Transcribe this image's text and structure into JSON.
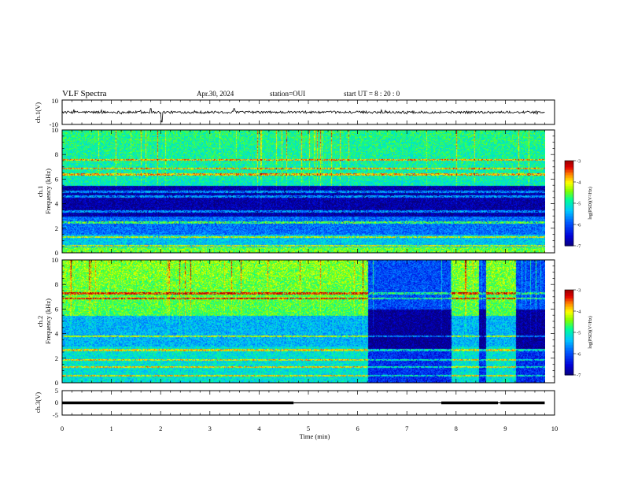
{
  "header": {
    "title": "VLF Spectra",
    "date": "Apr.30, 2024",
    "station": "station=OUI",
    "start_ut": "start  UT =   8 : 20 : 0"
  },
  "colors": {
    "spectrogram_scale": [
      "#08007a",
      "#0000d8",
      "#0050ff",
      "#00c8ff",
      "#00ffa0",
      "#80ff00",
      "#ffff00",
      "#ff8000",
      "#e00000",
      "#a00000",
      "#ffffff"
    ],
    "trace": "#000000"
  },
  "chart_data": [
    {
      "id": "ch1_waveform",
      "type": "line",
      "ylabel": "ch.1(V)",
      "ylim": [
        -10,
        10
      ],
      "yticks": [
        "10",
        "-10"
      ],
      "xlim": [
        0,
        10
      ],
      "description_values": {
        "baseline": 0,
        "noise_amplitude": 1,
        "spikes": [
          {
            "x": 2.02,
            "y": -8
          },
          {
            "x": 1.8,
            "y": 3
          },
          {
            "x": 3.5,
            "y": 3
          }
        ]
      }
    },
    {
      "id": "ch1_spectrogram",
      "type": "heatmap",
      "ylabel_lines": [
        "ch.1",
        "Frequency  (kHz)"
      ],
      "ylim": [
        0,
        10
      ],
      "yticks": [
        "0",
        "2",
        "4",
        "6",
        "8",
        "10"
      ],
      "xlim": [
        0,
        10
      ],
      "data_end_min": 9.8,
      "colorbar": {
        "label": "log(PSD)(V²/Hz)",
        "range": [
          -7,
          -3
        ],
        "ticks": [
          "-3",
          "-4",
          "-5",
          "-6",
          "-7"
        ]
      },
      "bands_khz": [
        {
          "from": 0,
          "to": 0.5,
          "level": -4.5
        },
        {
          "from": 0.5,
          "to": 1.5,
          "level": -5.3
        },
        {
          "from": 1.5,
          "to": 3.0,
          "level": -5.8
        },
        {
          "from": 3.0,
          "to": 5.5,
          "level": -6.8
        },
        {
          "from": 5.5,
          "to": 10,
          "level": -5.0
        }
      ],
      "lines_khz": [
        0.6,
        1.3,
        2.5,
        3.4,
        4.6,
        5.0,
        6.4,
        6.9,
        7.6
      ]
    },
    {
      "id": "ch2_spectrogram",
      "type": "heatmap",
      "ylabel_lines": [
        "ch.2",
        "Frequency  (kHz)"
      ],
      "ylim": [
        0,
        10
      ],
      "yticks": [
        "0",
        "2",
        "4",
        "6",
        "8",
        "10"
      ],
      "xlim": [
        0,
        10
      ],
      "data_end_min": 9.8,
      "colorbar": {
        "label": "log(PSD)(V²/Hz)",
        "range": [
          -7,
          -3
        ],
        "ticks": [
          "-3",
          "-4",
          "-5",
          "-6",
          "-7"
        ]
      },
      "quiet_intervals_min": [
        [
          6.2,
          7.9
        ],
        [
          8.45,
          8.6
        ],
        [
          9.2,
          9.8
        ]
      ],
      "lines_khz": [
        0.6,
        1.3,
        1.9,
        2.7,
        3.8,
        6.9,
        7.3
      ]
    },
    {
      "id": "ch3_waveform",
      "type": "line",
      "ylabel": "ch.3(V)",
      "ylim": [
        -5,
        5
      ],
      "yticks": [
        "5",
        "0",
        "-5"
      ],
      "xlim": [
        0,
        10
      ],
      "xlabel": "Time  (min)",
      "xticks": [
        "0",
        "1",
        "2",
        "3",
        "4",
        "5",
        "6",
        "7",
        "8",
        "9",
        "10"
      ],
      "segments": [
        {
          "from": 0,
          "to": 4.7,
          "y": 0,
          "style": "thick"
        },
        {
          "from": 4.7,
          "to": 7.7,
          "y": 0,
          "style": "thin"
        },
        {
          "from": 7.7,
          "to": 8.85,
          "y": 0,
          "style": "thick"
        },
        {
          "from": 8.85,
          "to": 8.9,
          "y": 0,
          "style": "thin"
        },
        {
          "from": 8.9,
          "to": 9.8,
          "y": 0,
          "style": "thick"
        }
      ]
    }
  ]
}
